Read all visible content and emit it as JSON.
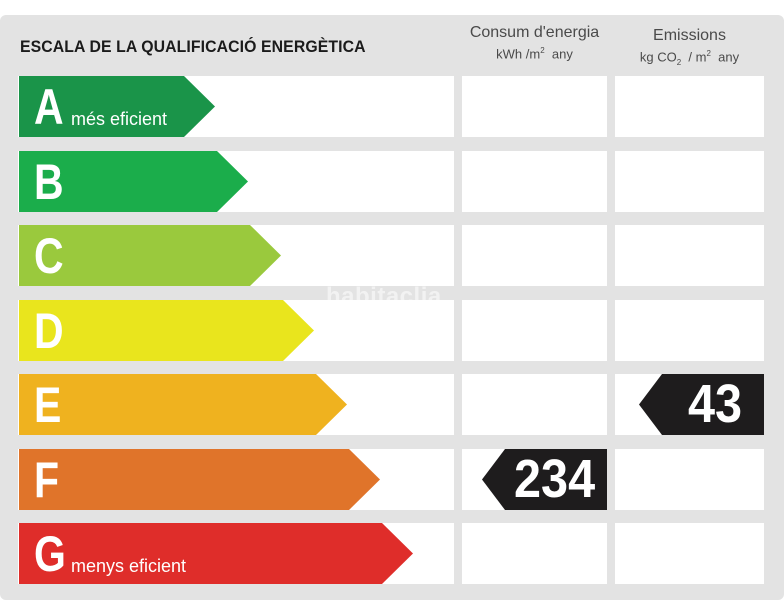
{
  "title": "ESCALA DE LA QUALIFICACIÓ ENERGÈTICA",
  "columns": {
    "energy": {
      "label": "Consum d'energia",
      "unit_prefix": "kWh /m",
      "unit_sup": "2",
      "unit_suffix": "any"
    },
    "emissions": {
      "label": "Emissions",
      "unit_prefix": "kg CO",
      "unit_sub": "2",
      "unit_mid": "/ m",
      "unit_sup": "2",
      "unit_suffix": "any"
    }
  },
  "grades": [
    {
      "letter": "A",
      "note": "més eficient",
      "color": "#1a9449"
    },
    {
      "letter": "B",
      "note": "",
      "color": "#1bad4b"
    },
    {
      "letter": "C",
      "note": "",
      "color": "#9ac93d"
    },
    {
      "letter": "D",
      "note": "",
      "color": "#e9e51d"
    },
    {
      "letter": "E",
      "note": "",
      "color": "#efb21f"
    },
    {
      "letter": "F",
      "note": "",
      "color": "#e0742a"
    },
    {
      "letter": "G",
      "note": "menys eficient",
      "color": "#df2d2a"
    }
  ],
  "ratings": {
    "energy": {
      "grade": "F",
      "value": "234"
    },
    "emissions": {
      "grade": "E",
      "value": "43"
    }
  },
  "watermark": "habitaclia"
}
